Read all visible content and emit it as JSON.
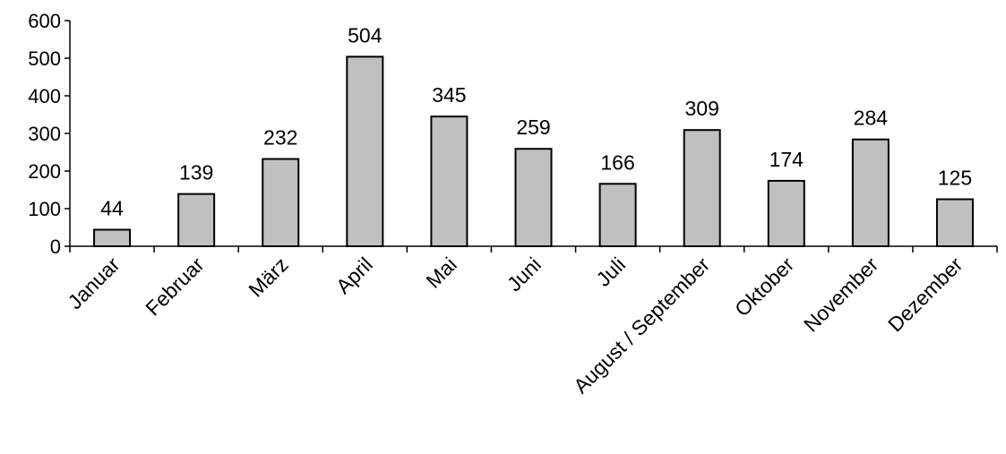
{
  "chart_data": {
    "type": "bar",
    "title": "",
    "xlabel": "",
    "ylabel": "",
    "ylim": [
      0,
      600
    ],
    "yticks": [
      0,
      100,
      200,
      300,
      400,
      500,
      600
    ],
    "categories": [
      "Januar",
      "Februar",
      "März",
      "April",
      "Mai",
      "Juni",
      "Juli",
      "August / September",
      "Oktober",
      "November",
      "Dezember"
    ],
    "values": [
      44,
      139,
      232,
      504,
      345,
      259,
      166,
      309,
      174,
      284,
      125
    ],
    "data_labels": [
      "44",
      "139",
      "232",
      "504",
      "345",
      "259",
      "166",
      "309",
      "174",
      "284",
      "125"
    ],
    "grid": false,
    "legend": "none",
    "colors": {
      "bar_fill": "#c0c0c0",
      "bar_stroke": "#000000",
      "axis": "#000000"
    }
  }
}
